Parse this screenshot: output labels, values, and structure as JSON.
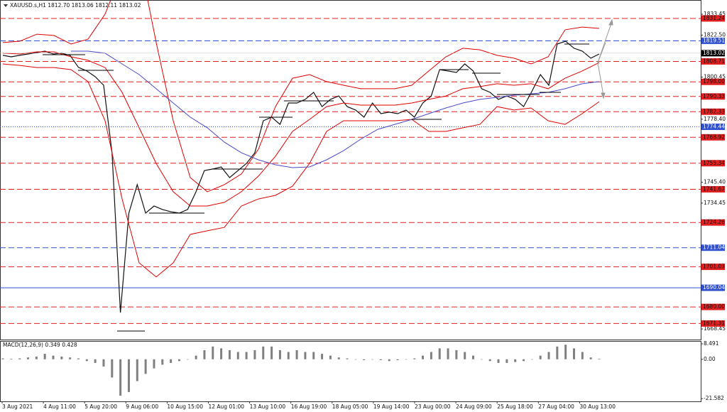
{
  "chart_data": [
    {
      "type": "line",
      "title": "XAUUSD.s,H1  1812.70 1813.06 1812.11 1813.02",
      "ylim": [
        1662.9,
        1840.9
      ],
      "yticks": [
        1833.45,
        {
          "value": 1822.5,
          "label": "1822.50"
        },
        1800.45,
        {
          "value": 1778.4,
          "label": "1778.40"
        },
        {
          "value": 1745.4,
          "label": "1745.40"
        },
        1734.45,
        1668.45
      ],
      "xlabels": [
        "3 Aug 2021",
        "4 Aug 11:00",
        "5 Aug 20:00",
        "9 Aug 06:00",
        "10 Aug 15:00",
        "12 Aug 01:00",
        "13 Aug 10:00",
        "16 Aug 19:00",
        "18 Aug 05:00",
        "19 Aug 14:00",
        "23 Aug 00:00",
        "24 Aug 09:00",
        "25 Aug 18:00",
        "27 Aug 04:00",
        "30 Aug 13:00"
      ],
      "levels": [
        {
          "value": 1831.24,
          "color": "#e02020",
          "style": "dashed"
        },
        {
          "value": 1819.51,
          "color": "#3050d0",
          "style": "dashed"
        },
        {
          "value": 1808.71,
          "color": "#e02020",
          "style": "dashed"
        },
        {
          "value": 1798.0,
          "label": "1798.00",
          "color": "#e02020",
          "style": "dashed"
        },
        {
          "value": 1790.33,
          "color": "#e02020",
          "style": "dashed"
        },
        {
          "value": 1782.33,
          "color": "#e02020",
          "style": "dashed"
        },
        {
          "value": 1774.44,
          "color": "#3050d0",
          "style": "dotted"
        },
        {
          "value": 1768.92,
          "color": "#e02020",
          "style": "dashed"
        },
        {
          "value": 1755.34,
          "color": "#e02020",
          "style": "dashed"
        },
        {
          "value": 1741.67,
          "color": "#e02020",
          "style": "dashed"
        },
        {
          "value": 1724.26,
          "color": "#e02020",
          "style": "dashed"
        },
        {
          "value": 1711.04,
          "color": "#3050d0",
          "style": "dashed"
        },
        {
          "value": 1701.03,
          "color": "#e02020",
          "style": "dashed"
        },
        {
          "value": 1690.04,
          "color": "#3050d0",
          "style": "solid"
        },
        {
          "value": 1680.0,
          "label": "1680.00",
          "color": "#e02020",
          "style": "dashed"
        },
        {
          "value": 1671.31,
          "color": "#e02020",
          "style": "dashed"
        }
      ],
      "current": 1813.02,
      "series": [
        {
          "color": "#111111",
          "values": [
            1811.9,
            1811.1,
            1811.9,
            1812.6,
            1813.3,
            1814.1,
            1812.6,
            1813.0,
            1811.9,
            1805.6,
            1803.7,
            1800.7,
            1796.2,
            1760.8,
            1677.0,
            1729.2,
            1744.1,
            1729.2,
            1732.9,
            1731.1,
            1729.9,
            1729.2,
            1731.1,
            1740.4,
            1751.5,
            1752.3,
            1753.4,
            1747.8,
            1751.5,
            1755.2,
            1760.8,
            1777.6,
            1779.5,
            1775.7,
            1786.9,
            1786.9,
            1788.8,
            1792.5,
            1785.0,
            1788.8,
            1790.6,
            1785.0,
            1783.2,
            1779.5,
            1786.9,
            1781.3,
            1782.1,
            1781.3,
            1783.2,
            1779.5,
            1786.9,
            1790.6,
            1804.4,
            1803.7,
            1802.9,
            1807.4,
            1803.7,
            1794.4,
            1792.5,
            1788.8,
            1790.6,
            1788.8,
            1785.0,
            1793.2,
            1801.8,
            1796.2,
            1817.8,
            1819.3,
            1815.6,
            1814.1,
            1810.4,
            1812.6
          ]
        },
        {
          "color": "#e00000",
          "values": [
            1818.6,
            1819.3,
            1823.0,
            1822.3,
            1817.8,
            1820.4,
            1833.5,
            1855.8,
            1863.2,
            1818.6,
            1777.6,
            1747.8,
            1740.4,
            1744.1,
            1749.7,
            1762.7,
            1785.0,
            1799.9,
            1801.8,
            1798.1,
            1796.2,
            1794.4,
            1794.4,
            1794.4,
            1796.2,
            1803.7,
            1811.1,
            1815.6,
            1814.8,
            1811.9,
            1810.4,
            1807.4,
            1811.1,
            1825.3,
            1826.7,
            1826.0
          ]
        },
        {
          "color": "#e00000",
          "values": [
            1813.0,
            1812.6,
            1813.7,
            1813.7,
            1811.1,
            1809.3,
            1805.5,
            1792.5,
            1773.9,
            1755.2,
            1740.4,
            1732.9,
            1732.9,
            1734.8,
            1740.4,
            1748.6,
            1759.0,
            1772.0,
            1778.3,
            1785.0,
            1786.9,
            1785.8,
            1785.8,
            1785.8,
            1786.9,
            1788.8,
            1790.6,
            1794.4,
            1795.5,
            1797.0,
            1796.2,
            1797.0,
            1794.4,
            1799.9,
            1803.7,
            1808.1
          ]
        },
        {
          "color": "#e00000",
          "values": [
            1807.4,
            1806.6,
            1805.5,
            1805.5,
            1804.4,
            1798.1,
            1777.6,
            1736.6,
            1703.1,
            1695.7,
            1703.1,
            1718.0,
            1719.9,
            1721.7,
            1732.9,
            1736.6,
            1738.5,
            1743.3,
            1755.2,
            1772.0,
            1777.6,
            1777.6,
            1777.6,
            1777.6,
            1778.3,
            1772.0,
            1772.0,
            1773.9,
            1775.7,
            1785.0,
            1783.2,
            1784.3,
            1777.6,
            1775.7,
            1781.3,
            1787.6
          ]
        },
        {
          "color": "#4a4ac8",
          "values": [
            null,
            null,
            null,
            null,
            1814.1,
            1814.1,
            1813.0,
            1807.4,
            1801.8,
            1794.4,
            1786.9,
            1779.5,
            1773.9,
            1766.4,
            1760.8,
            1757.1,
            1754.5,
            1753.0,
            1753.4,
            1757.1,
            1761.9,
            1767.9,
            1773.1,
            1775.7,
            1778.3,
            1781.3,
            1784.3,
            1786.9,
            1788.8,
            1789.9,
            1791.0,
            1791.7,
            1792.5,
            1794.4,
            1797.0,
            1798.1
          ]
        }
      ]
    },
    {
      "type": "bar",
      "title": "MACD(12,26,9) 0.349 0.428",
      "color": "#808080",
      "ylim": [
        -23.1,
        10.05
      ],
      "yticks": [
        8.491,
        {
          "value": 0,
          "label": "0.00"
        },
        -21.582
      ],
      "values": [
        0.5,
        0.3,
        0.5,
        1,
        1.5,
        3,
        2,
        1.5,
        1,
        0.5,
        -1,
        -2,
        -4,
        -10,
        -20,
        -18,
        -12,
        -8,
        -5,
        -3,
        -2,
        -1,
        0,
        2,
        5,
        7,
        6,
        5,
        4,
        4,
        5,
        7,
        7,
        5,
        4,
        5,
        4,
        4,
        3,
        2,
        1,
        0.5,
        0,
        -0.5,
        0,
        -0.5,
        -1,
        -0.5,
        0,
        0.5,
        2,
        4,
        6,
        6,
        5,
        4,
        2,
        0,
        -1,
        -2,
        -2,
        -1.5,
        -1,
        0,
        2,
        4,
        7,
        8,
        6,
        4,
        1,
        0.3
      ]
    }
  ]
}
